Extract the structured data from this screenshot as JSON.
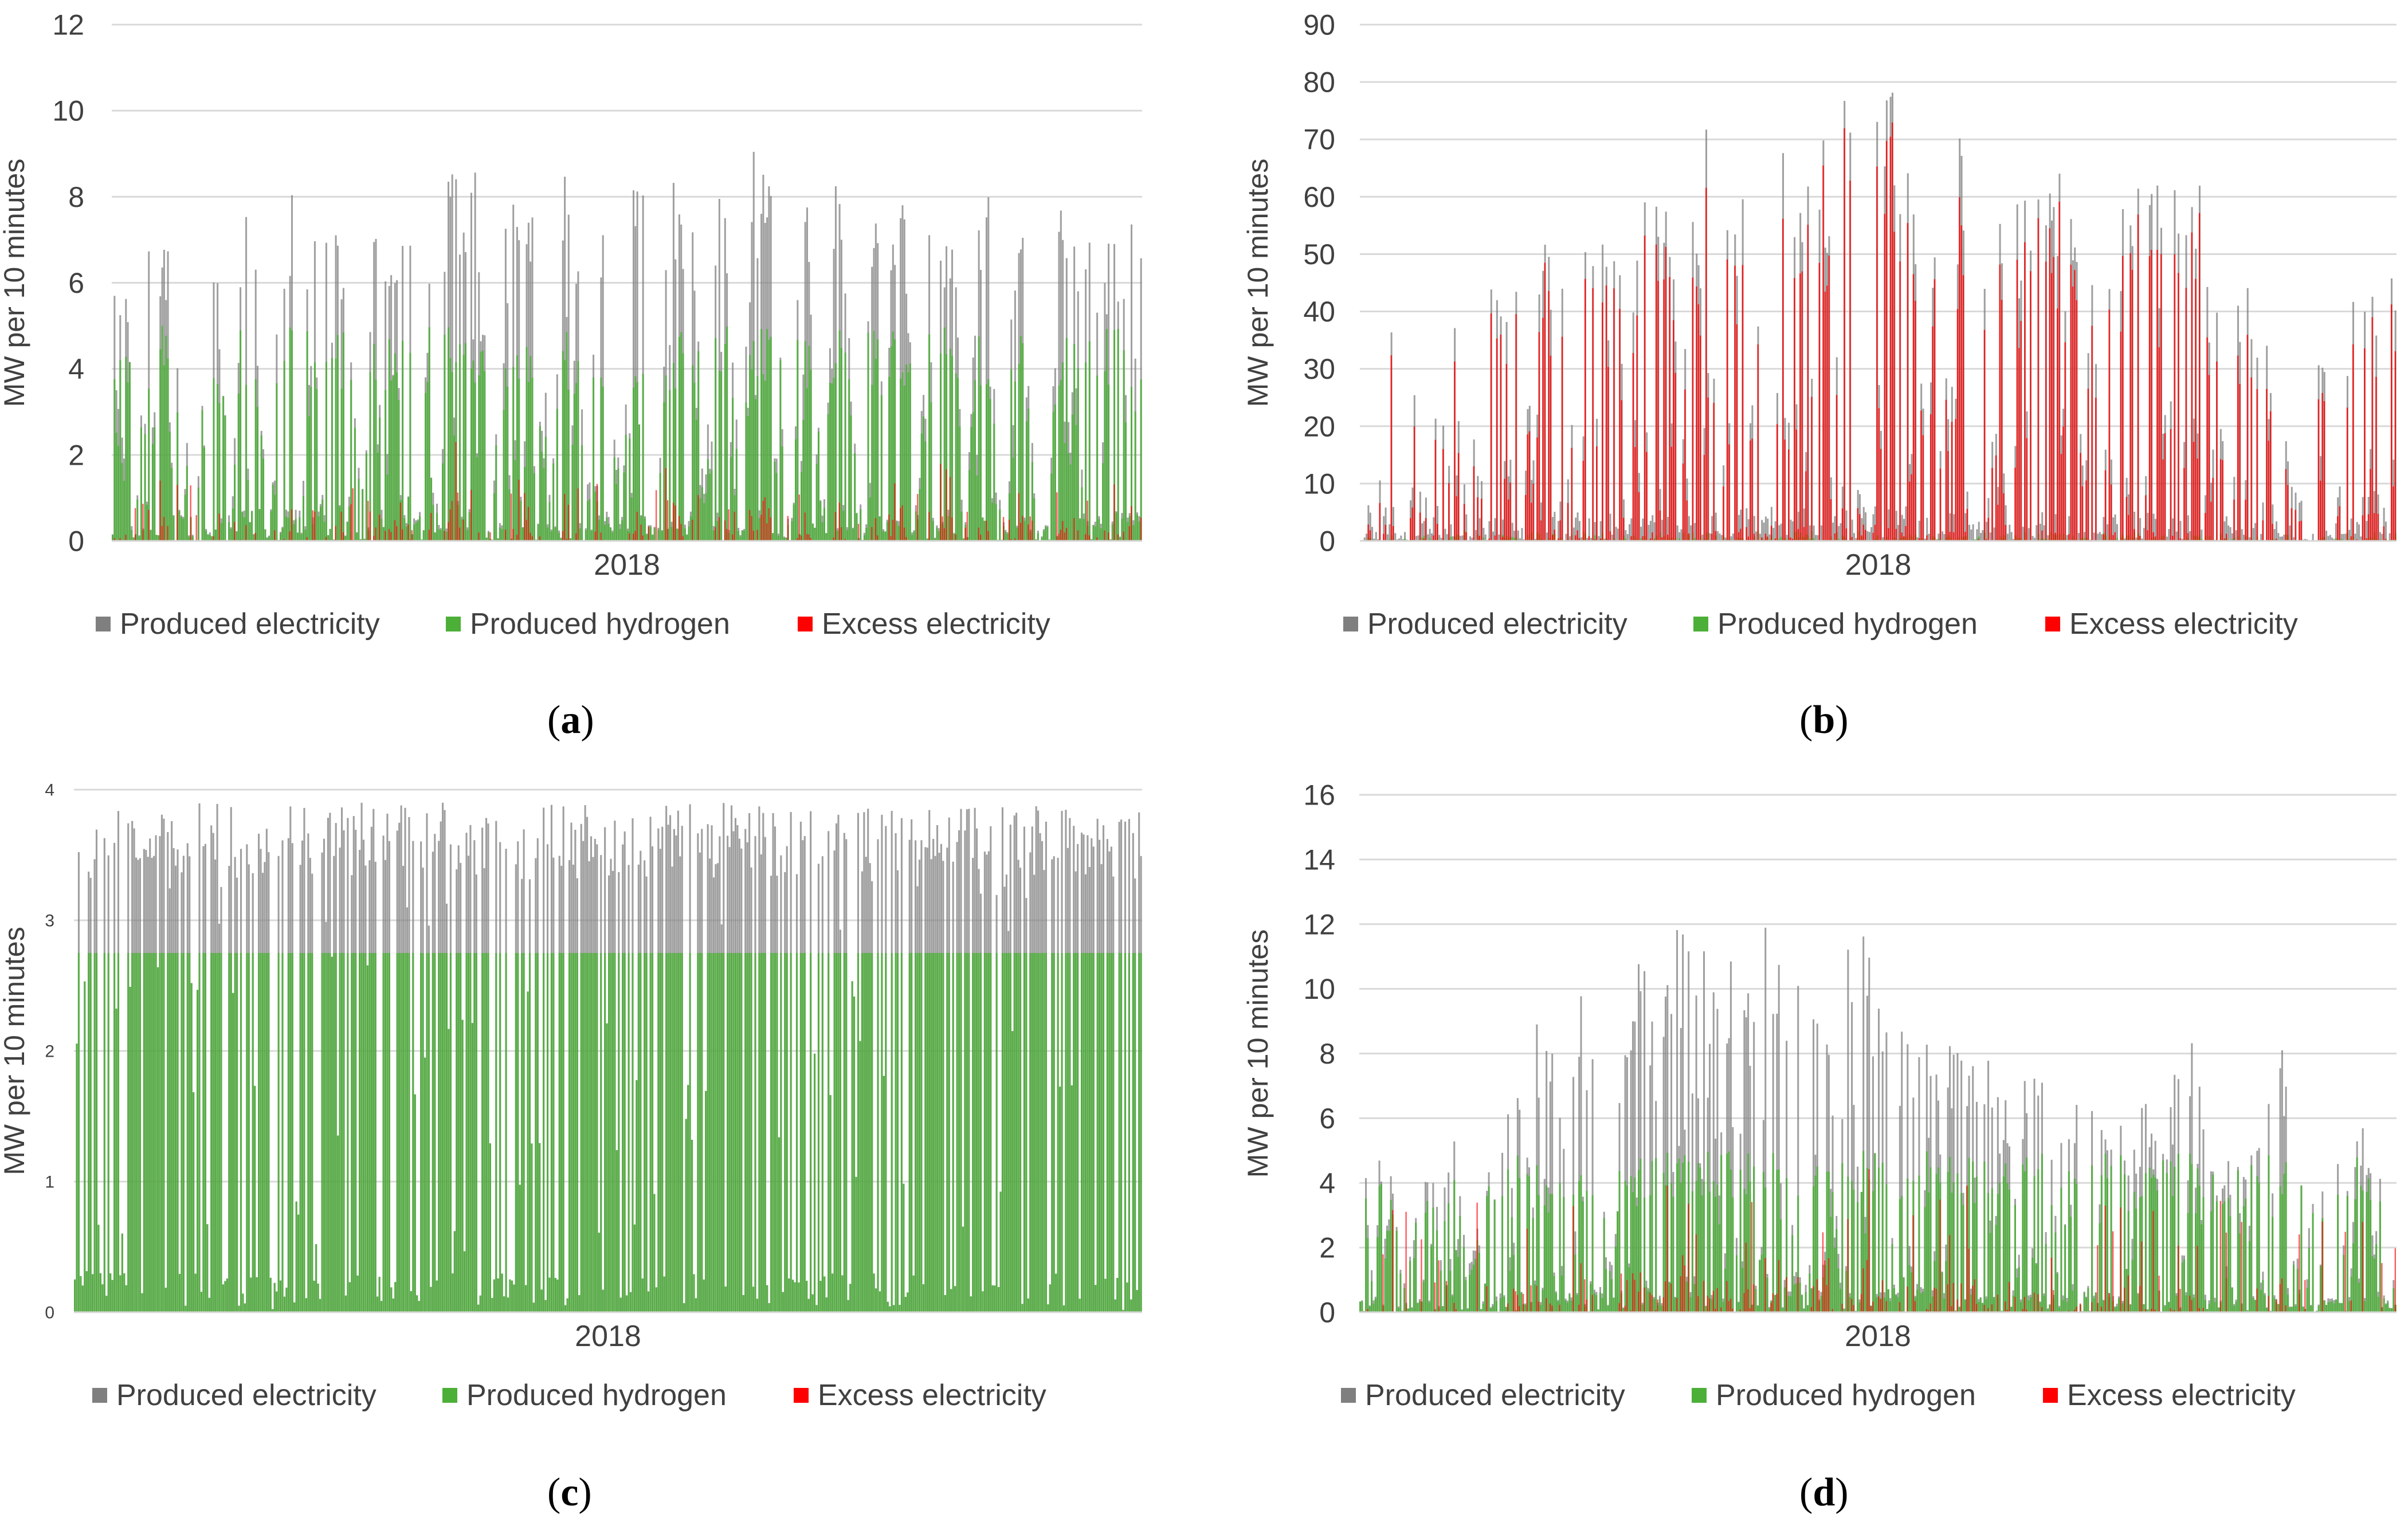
{
  "chart_data": [
    {
      "panel": "a",
      "type": "area",
      "xlabel": "2018",
      "ylabel": "MW per 10 minutes",
      "ylim": [
        0,
        12
      ],
      "yticks": [
        0,
        2,
        4,
        6,
        8,
        10,
        12
      ],
      "grid": true,
      "legend": "bottom",
      "colors": {
        "Produced electricity": "#7f7f7f",
        "Produced hydrogen": "#4caf38",
        "Excess electricity": "#ff0000"
      },
      "series": [
        {
          "name": "Produced electricity",
          "typical_peak": 7.5,
          "max": 9.7,
          "values_daily_max": [
            7.4,
            7.2,
            0.5,
            7.2,
            7.1,
            7.3,
            7.0,
            0.4,
            7.2,
            6.5,
            0.3,
            8.1,
            7.0,
            0.5,
            7.2,
            8.5,
            8.3,
            7.1,
            7.9,
            8.0,
            6.4,
            0.6,
            7.7,
            8.2,
            7.0,
            7.9,
            0.4,
            9.2,
            8.9,
            9.3,
            9.5,
            8.6,
            0.5,
            7.1,
            9.0,
            9.2,
            8.2,
            0.6,
            8.8,
            9.5,
            0.4,
            9.1,
            7.3,
            0.5,
            8.5,
            9.3,
            0.3,
            9.4,
            8.7,
            8.2,
            0.7,
            9.1,
            8.4,
            0.5,
            9.4,
            8.9,
            7.6,
            0.4,
            8.9,
            7.2,
            0.3,
            9.1,
            6.5,
            0.5,
            8.2,
            8.7,
            8.3,
            7.7,
            0.6,
            8.5,
            8.1,
            7.9,
            0.4,
            7.4,
            8.3,
            0.5,
            7.6,
            7.0,
            0.3,
            0.4,
            7.9,
            7.2,
            7.0,
            7.5,
            7.3,
            7.1,
            7.4,
            7.2
          ]
        },
        {
          "name": "Produced hydrogen",
          "cap": 5.0
        },
        {
          "name": "Excess electricity",
          "max": 2.3
        }
      ]
    },
    {
      "panel": "b",
      "type": "area",
      "xlabel": "2018",
      "ylabel": "MW per 10 minutes",
      "ylim": [
        0,
        90
      ],
      "yticks": [
        0,
        10,
        20,
        30,
        40,
        50,
        60,
        70,
        80,
        90
      ],
      "grid": true,
      "legend": "bottom",
      "colors": {
        "Produced electricity": "#7f7f7f",
        "Produced hydrogen": "#4caf38",
        "Excess electricity": "#ff0000"
      },
      "series": [
        {
          "name": "Produced electricity",
          "max": 83,
          "values_daily_max": [
            45,
            2,
            43,
            5,
            56,
            18,
            50,
            3,
            49,
            44,
            47,
            59,
            64,
            68,
            48,
            73,
            55,
            50,
            58,
            60,
            70,
            48,
            68,
            78,
            62,
            79,
            55,
            80,
            77,
            81,
            78,
            81,
            82,
            78,
            80,
            83,
            79,
            72,
            70,
            76,
            65,
            60,
            55,
            62,
            58,
            75,
            66,
            54,
            48,
            60,
            58,
            69,
            64,
            68,
            67,
            63,
            52,
            55,
            56,
            40,
            30,
            12,
            5,
            42,
            3,
            55,
            45,
            56,
            50
          ]
        },
        {
          "name": "Produced hydrogen",
          "max": 5
        },
        {
          "name": "Excess electricity",
          "max": 78
        }
      ]
    },
    {
      "panel": "c",
      "type": "area",
      "xlabel": "2018",
      "ylabel": "MW per 10 minutes",
      "ylim": [
        0,
        4
      ],
      "yticks": [
        0,
        1,
        2,
        3,
        4
      ],
      "grid": true,
      "legend": "bottom",
      "colors": {
        "Produced electricity": "#7f7f7f",
        "Produced hydrogen": "#4caf38",
        "Excess electricity": "#ff0000"
      },
      "series": [
        {
          "name": "Produced electricity",
          "cap": 3.9
        },
        {
          "name": "Produced hydrogen",
          "cap": 2.75
        },
        {
          "name": "Excess electricity",
          "max": 0.0
        }
      ]
    },
    {
      "panel": "d",
      "type": "area",
      "xlabel": "2018",
      "ylabel": "MW per 10 minutes",
      "ylim": [
        0,
        16
      ],
      "yticks": [
        0,
        2,
        4,
        6,
        8,
        10,
        12,
        14,
        16
      ],
      "grid": true,
      "legend": "bottom",
      "colors": {
        "Produced electricity": "#7f7f7f",
        "Produced hydrogen": "#4caf38",
        "Excess electricity": "#ff0000"
      },
      "series": [
        {
          "name": "Produced electricity",
          "max": 13.3,
          "values_daily_max": [
            5.5,
            5.0,
            4.8,
            1.0,
            5.2,
            4.0,
            6.0,
            1.5,
            5.0,
            6.5,
            7.0,
            9.6,
            8.8,
            6.5,
            10.0,
            7.5,
            4.0,
            9.0,
            12.4,
            8.0,
            12.8,
            11.5,
            12.0,
            10.0,
            13.1,
            9.0,
            13.3,
            10.5,
            12.3,
            9.5,
            11.0,
            12.0,
            11.8,
            10.5,
            9.0,
            8.5,
            9.3,
            8.7,
            8.2,
            7.8,
            8.0,
            6.5,
            7.5,
            8.0,
            6.0,
            7.0,
            7.2,
            6.5,
            6.0,
            5.5,
            6.8,
            5.0,
            8.0,
            9.6,
            5.0,
            4.5,
            6.0,
            5.5,
            8.4,
            8.2,
            4.0,
            3.0,
            6.3,
            5.0,
            6.0,
            4.0,
            5.2
          ]
        },
        {
          "name": "Produced hydrogen",
          "cap": 5.0
        },
        {
          "name": "Excess electricity",
          "max": 6.0
        }
      ]
    }
  ],
  "captions": [
    {
      "letter": "a"
    },
    {
      "letter": "b"
    },
    {
      "letter": "c"
    },
    {
      "letter": "d"
    }
  ],
  "paren_open": "(",
  "paren_close": ")"
}
